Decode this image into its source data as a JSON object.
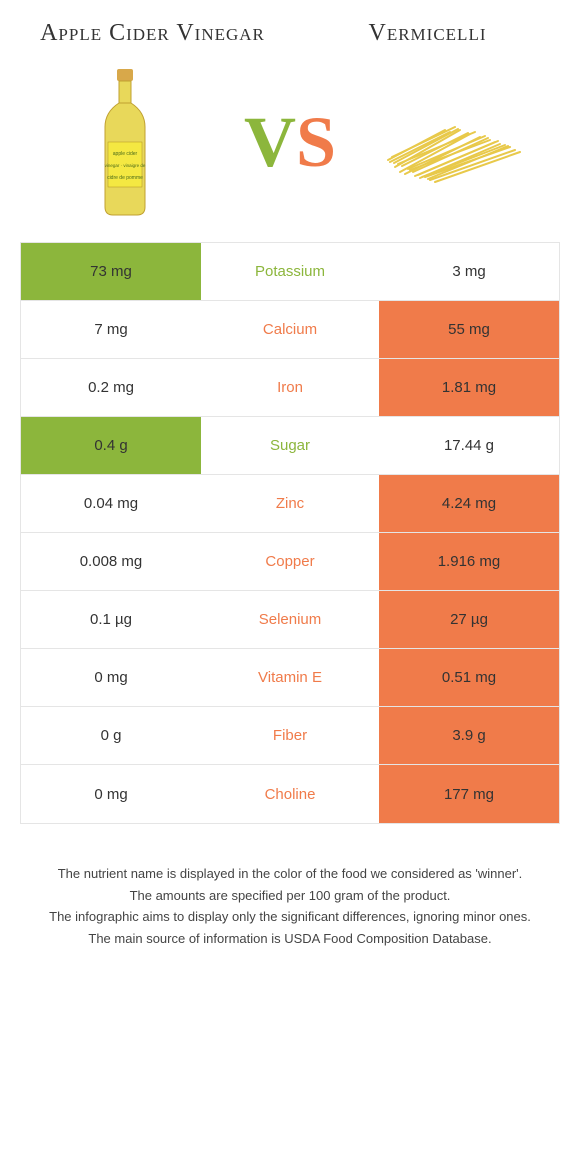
{
  "colors": {
    "left_accent": "#8cb63c",
    "right_accent": "#f07b4a",
    "background": "#ffffff",
    "border": "#e5e5e5",
    "text": "#333333"
  },
  "header": {
    "left_title": "Apple Cider Vinegar",
    "right_title": "Vermicelli",
    "vs_v": "V",
    "vs_s": "S"
  },
  "rows": [
    {
      "nutrient": "Potassium",
      "left": "73 mg",
      "right": "3 mg",
      "winner": "left"
    },
    {
      "nutrient": "Calcium",
      "left": "7 mg",
      "right": "55 mg",
      "winner": "right"
    },
    {
      "nutrient": "Iron",
      "left": "0.2 mg",
      "right": "1.81 mg",
      "winner": "right"
    },
    {
      "nutrient": "Sugar",
      "left": "0.4 g",
      "right": "17.44 g",
      "winner": "left"
    },
    {
      "nutrient": "Zinc",
      "left": "0.04 mg",
      "right": "4.24 mg",
      "winner": "right"
    },
    {
      "nutrient": "Copper",
      "left": "0.008 mg",
      "right": "1.916 mg",
      "winner": "right"
    },
    {
      "nutrient": "Selenium",
      "left": "0.1 µg",
      "right": "27 µg",
      "winner": "right"
    },
    {
      "nutrient": "Vitamin E",
      "left": "0 mg",
      "right": "0.51 mg",
      "winner": "right"
    },
    {
      "nutrient": "Fiber",
      "left": "0 g",
      "right": "3.9 g",
      "winner": "right"
    },
    {
      "nutrient": "Choline",
      "left": "0 mg",
      "right": "177 mg",
      "winner": "right"
    }
  ],
  "footer": {
    "line1": "The nutrient name is displayed in the color of the food we considered as 'winner'.",
    "line2": "The amounts are specified per 100 gram of the product.",
    "line3": "The infographic aims to display only the significant differences, ignoring minor ones.",
    "line4": "The main source of information is USDA Food Composition Database."
  }
}
